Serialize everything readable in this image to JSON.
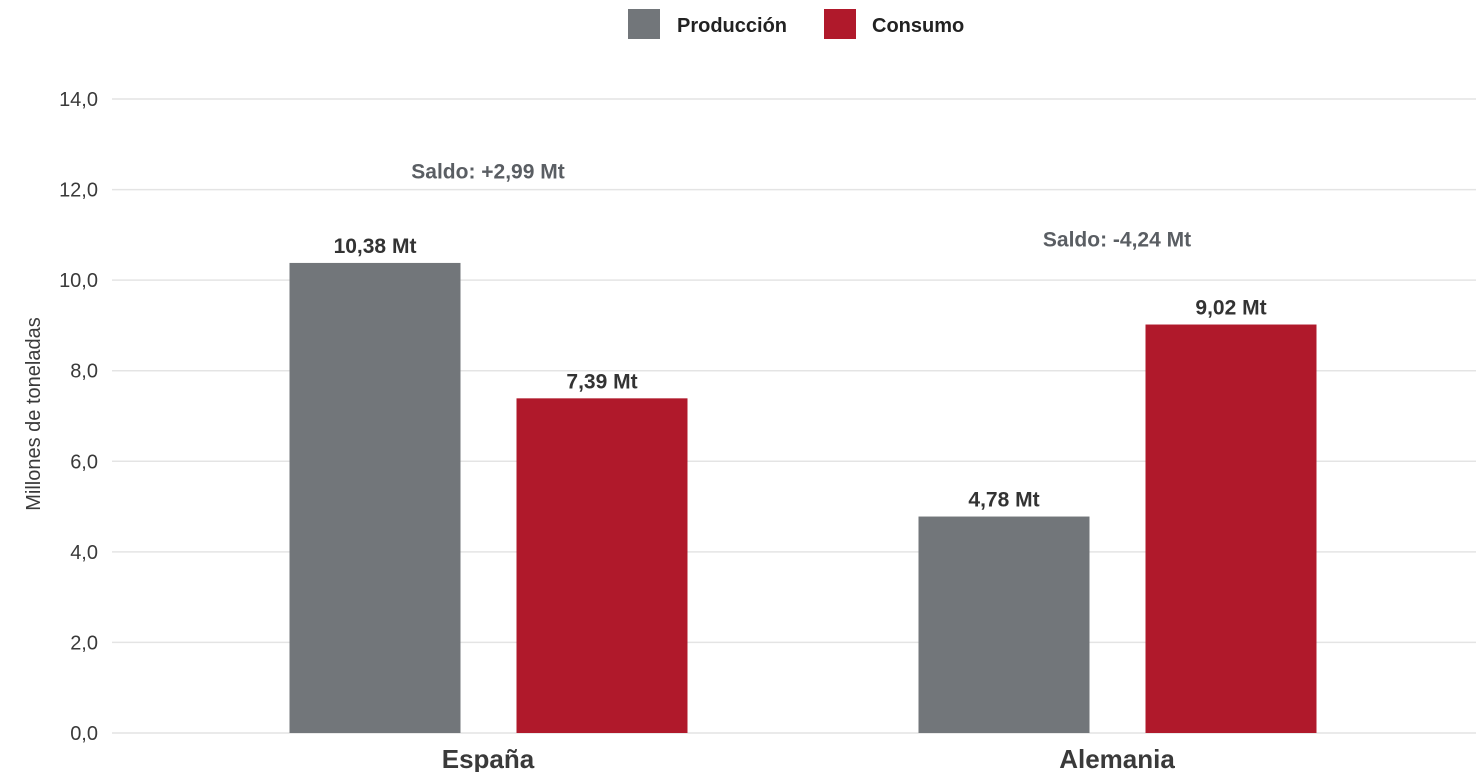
{
  "chart_data": {
    "type": "bar",
    "categories": [
      "España",
      "Alemania"
    ],
    "series": [
      {
        "name": "Producción",
        "color": "#72767a",
        "values": [
          10.38,
          4.78
        ],
        "labels": [
          "10,38 Mt",
          "4,78 Mt"
        ]
      },
      {
        "name": "Consumo",
        "color": "#b0192b",
        "values": [
          7.39,
          9.02
        ],
        "labels": [
          "7,39 Mt",
          "9,02 Mt"
        ]
      }
    ],
    "annotations": [
      {
        "category": "España",
        "text": "Saldo: +2,99 Mt",
        "y": 12.4
      },
      {
        "category": "Alemania",
        "text": "Saldo: -4,24 Mt",
        "y": 10.9
      }
    ],
    "title": "",
    "xlabel": "",
    "ylabel": "Millones de toneladas",
    "ylim": [
      0,
      14
    ],
    "yticks": [
      0,
      2,
      4,
      6,
      8,
      10,
      12,
      14
    ],
    "ytick_labels": [
      "0,0",
      "2,0",
      "4,0",
      "6,0",
      "8,0",
      "10,0",
      "12,0",
      "14,0"
    ],
    "grid": true,
    "legend_position": "top-center"
  }
}
